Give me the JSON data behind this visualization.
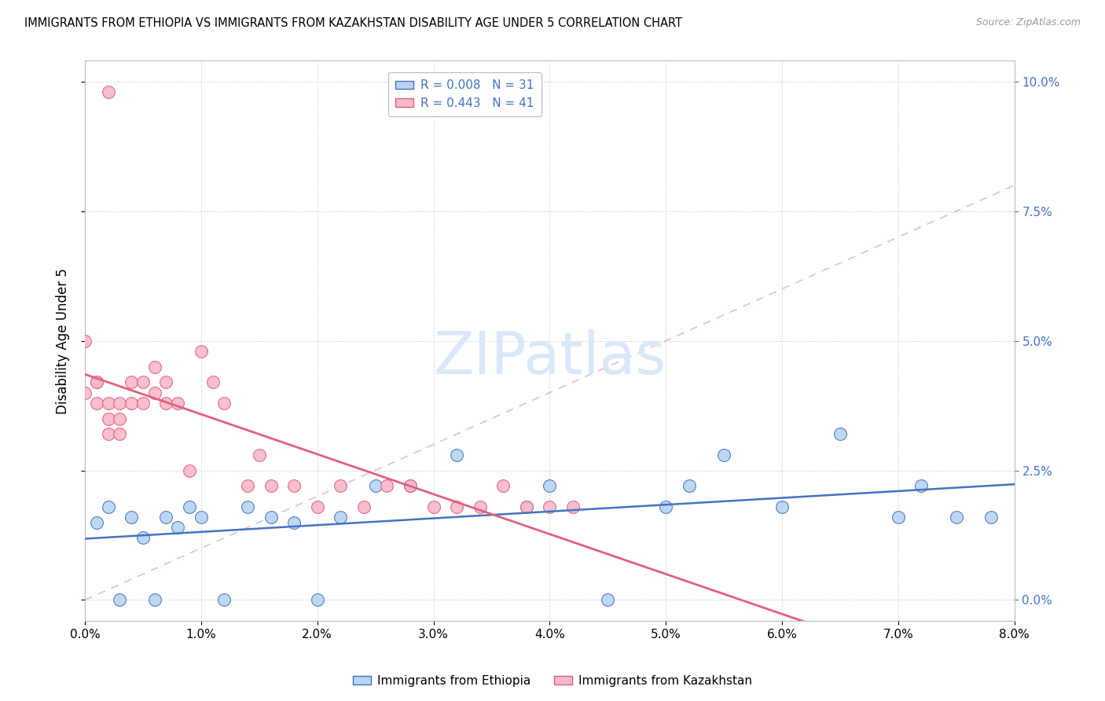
{
  "title": "IMMIGRANTS FROM ETHIOPIA VS IMMIGRANTS FROM KAZAKHSTAN DISABILITY AGE UNDER 5 CORRELATION CHART",
  "source": "Source: ZipAtlas.com",
  "ylabel": "Disability Age Under 5",
  "legend_ethiopia": "Immigrants from Ethiopia",
  "legend_kazakhstan": "Immigrants from Kazakhstan",
  "r_ethiopia": 0.008,
  "n_ethiopia": 31,
  "r_kazakhstan": 0.443,
  "n_kazakhstan": 41,
  "color_ethiopia": "#b8d4f0",
  "color_kazakhstan": "#f8b8c8",
  "line_ethiopia": "#4472c4",
  "line_kazakhstan": "#e06080",
  "xlim": [
    0.0,
    0.08
  ],
  "ylim": [
    -0.004,
    0.104
  ],
  "yticks": [
    0.0,
    0.025,
    0.05,
    0.075,
    0.1
  ],
  "xticks": [
    0.0,
    0.01,
    0.02,
    0.03,
    0.04,
    0.05,
    0.06,
    0.07,
    0.08
  ],
  "ethiopia_x": [
    0.001,
    0.002,
    0.003,
    0.004,
    0.005,
    0.006,
    0.007,
    0.008,
    0.009,
    0.01,
    0.012,
    0.014,
    0.016,
    0.018,
    0.02,
    0.022,
    0.025,
    0.028,
    0.032,
    0.038,
    0.04,
    0.045,
    0.05,
    0.052,
    0.055,
    0.06,
    0.065,
    0.07,
    0.072,
    0.075,
    0.078
  ],
  "ethiopia_y": [
    0.015,
    0.018,
    0.0,
    0.016,
    0.012,
    0.0,
    0.016,
    0.014,
    0.018,
    0.016,
    0.0,
    0.018,
    0.016,
    0.015,
    0.0,
    0.016,
    0.022,
    0.022,
    0.028,
    0.018,
    0.022,
    0.0,
    0.018,
    0.022,
    0.028,
    0.018,
    0.032,
    0.016,
    0.022,
    0.016,
    0.016
  ],
  "kazakhstan_x": [
    0.0,
    0.0,
    0.001,
    0.001,
    0.001,
    0.002,
    0.002,
    0.002,
    0.003,
    0.003,
    0.003,
    0.004,
    0.004,
    0.005,
    0.005,
    0.006,
    0.006,
    0.007,
    0.007,
    0.008,
    0.009,
    0.01,
    0.011,
    0.012,
    0.014,
    0.015,
    0.016,
    0.018,
    0.02,
    0.022,
    0.024,
    0.026,
    0.028,
    0.03,
    0.032,
    0.034,
    0.036,
    0.038,
    0.04,
    0.042,
    0.002
  ],
  "kazakhstan_y": [
    0.05,
    0.04,
    0.038,
    0.042,
    0.042,
    0.035,
    0.038,
    0.032,
    0.038,
    0.035,
    0.032,
    0.042,
    0.038,
    0.042,
    0.038,
    0.045,
    0.04,
    0.042,
    0.038,
    0.038,
    0.025,
    0.048,
    0.042,
    0.038,
    0.022,
    0.028,
    0.022,
    0.022,
    0.018,
    0.022,
    0.018,
    0.022,
    0.022,
    0.018,
    0.018,
    0.018,
    0.022,
    0.018,
    0.018,
    0.018,
    0.098
  ]
}
